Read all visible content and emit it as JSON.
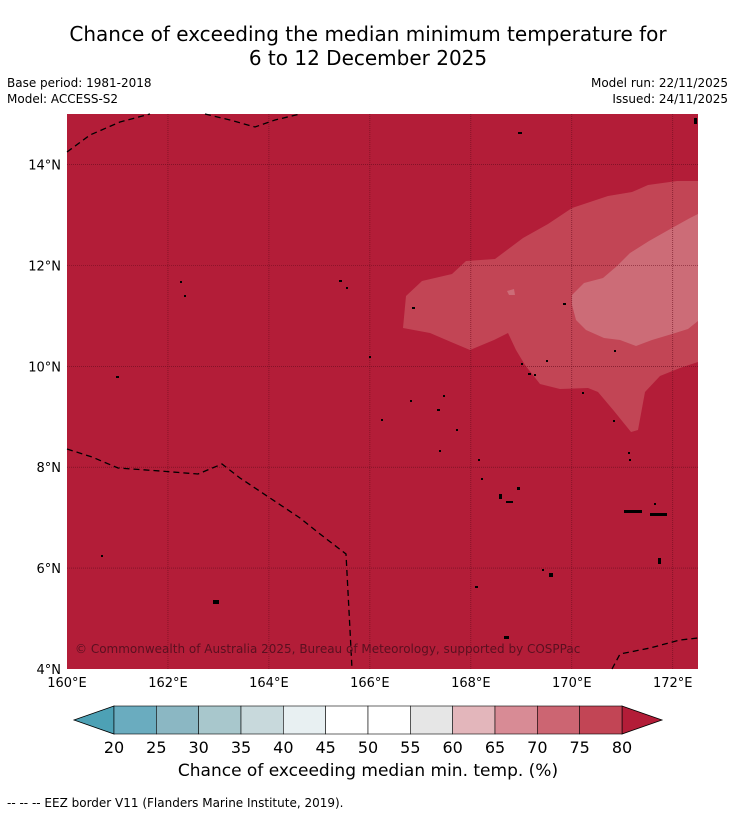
{
  "title": {
    "line1": "Chance of exceeding the median minimum temperature for",
    "line2": "6 to 12 December 2025"
  },
  "meta": {
    "base_period": "Base period: 1981-2018",
    "model": "Model: ACCESS-S2",
    "model_run": "Model run: 22/11/2025",
    "issued": "Issued: 24/11/2025"
  },
  "map": {
    "lon_range": [
      160,
      172.5
    ],
    "lat_range": [
      4,
      15
    ],
    "lon_ticks": [
      "160°E",
      "162°E",
      "164°E",
      "166°E",
      "168°E",
      "170°E",
      "172°E"
    ],
    "lat_ticks": [
      "4°N",
      "6°N",
      "8°N",
      "10°N",
      "12°N",
      "14°N"
    ],
    "gridlines": true,
    "copyright": "© Commonwealth of Australia 2025, Bureau of Meteorology, supported by COSPPac",
    "background_color": "#b31d38"
  },
  "colorbar": {
    "ticks": [
      "20",
      "25",
      "30",
      "35",
      "40",
      "45",
      "50",
      "55",
      "60",
      "65",
      "70",
      "75",
      "80"
    ],
    "colors": [
      "#6aacbf",
      "#8bb7c3",
      "#a8c7cc",
      "#c8d9dc",
      "#e8f0f2",
      "#ffffff",
      "#ffffff",
      "#e6e6e6",
      "#e3b6bb",
      "#d88b95",
      "#cc6572",
      "#c24555"
    ],
    "under_color": "#4da1b5",
    "over_color": "#b31d38",
    "label": "Chance of exceeding median min. temp. (%)"
  },
  "footnote": "--  --  -- EEZ border V11 (Flanders Marine Institute, 2019)."
}
